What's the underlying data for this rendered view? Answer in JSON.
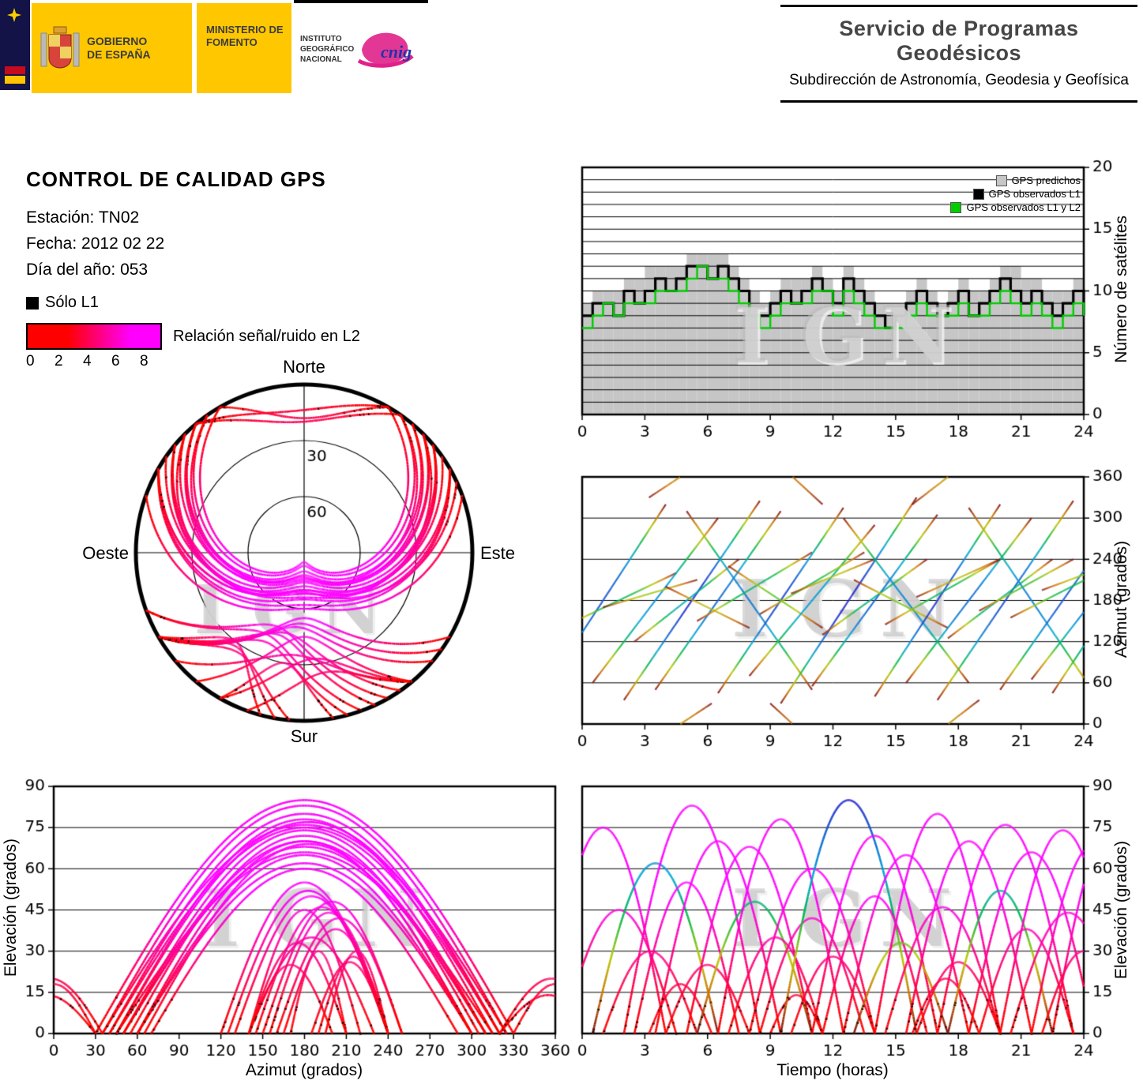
{
  "header": {
    "logos": {
      "gobierno": "GOBIERNO DE ESPAÑA",
      "ministerio": "MINISTERIO DE FOMENTO",
      "instituto": "INSTITUTO GEOGRÁFICO NACIONAL",
      "cnig": "cnig"
    },
    "service_title": "Servicio de Programas Geodésicos",
    "service_subtitle": "Subdirección de Astronomía, Geodesia y Geofísica"
  },
  "report": {
    "title": "CONTROL DE CALIDAD GPS",
    "station_label": "Estación: TN02",
    "date_label": "Fecha: 2012 02 22",
    "doy_label": "Día del año: 053"
  },
  "legend": {
    "l1_only": "Sólo L1",
    "snr_label": "Relación señal/ruido en L2",
    "snr_ticks": [
      "0",
      "2",
      "4",
      "6",
      "8"
    ],
    "snr_gradient": [
      "#ff0000",
      "#ff00ff"
    ]
  },
  "chart_data": [
    {
      "id": "skyplot",
      "type": "polar_skyplot",
      "cardinal": {
        "north": "Norte",
        "south": "Sur",
        "east": "Este",
        "west": "Oeste"
      },
      "ring_labels": [
        "30",
        "60"
      ],
      "elevation_rings_deg": [
        30,
        60
      ],
      "colormap": "snr_red_to_magenta",
      "source": "passes",
      "watermark": "IGN"
    },
    {
      "id": "satellite_count",
      "type": "area",
      "xlabel": "",
      "ylabel": "Número de satélites",
      "xlim": [
        0,
        24
      ],
      "ylim": [
        0,
        20
      ],
      "xticks": [
        0,
        3,
        6,
        9,
        12,
        15,
        18,
        21,
        24
      ],
      "yticks": [
        0,
        5,
        10,
        15,
        20
      ],
      "grid_y": 1,
      "x_step_hours": 0.5,
      "legend": [
        {
          "label": "GPS predichos",
          "color": "#c6c6c6"
        },
        {
          "label": "GPS observados L1",
          "color": "#000000"
        },
        {
          "label": "GPS observados L1 y L2",
          "color": "#00cc00"
        }
      ],
      "series": [
        {
          "name": "GPS predichos",
          "values": [
            9,
            10,
            10,
            10,
            11,
            11,
            12,
            12,
            12,
            12,
            13,
            13,
            13,
            13,
            12,
            11,
            10,
            9,
            10,
            11,
            11,
            11,
            12,
            11,
            10,
            12,
            11,
            10,
            9,
            9,
            9,
            10,
            11,
            10,
            9,
            10,
            11,
            10,
            10,
            11,
            12,
            12,
            11,
            11,
            10,
            10,
            10,
            11,
            9
          ]
        },
        {
          "name": "GPS observados L1",
          "values": [
            8,
            9,
            9,
            8,
            10,
            9,
            10,
            11,
            10,
            11,
            12,
            12,
            11,
            12,
            11,
            10,
            8,
            8,
            9,
            10,
            9,
            10,
            11,
            10,
            9,
            11,
            10,
            9,
            8,
            7,
            8,
            9,
            10,
            9,
            8,
            9,
            10,
            8,
            9,
            10,
            11,
            10,
            9,
            10,
            9,
            8,
            9,
            10,
            8
          ]
        },
        {
          "name": "GPS observados L1 y L2",
          "values": [
            7,
            8,
            9,
            8,
            9,
            9,
            9,
            10,
            10,
            10,
            11,
            12,
            11,
            11,
            10,
            9,
            8,
            7,
            8,
            9,
            9,
            9,
            10,
            10,
            8,
            10,
            9,
            8,
            7,
            7,
            7,
            8,
            9,
            8,
            8,
            8,
            9,
            8,
            8,
            9,
            10,
            9,
            8,
            9,
            8,
            7,
            8,
            9,
            8
          ]
        }
      ],
      "watermark": "IGN"
    },
    {
      "id": "azimuth_vs_time",
      "type": "line",
      "xlabel": "",
      "ylabel": "Azimut (grados)",
      "xlim": [
        0,
        24
      ],
      "ylim": [
        0,
        360
      ],
      "xticks": [
        0,
        3,
        6,
        9,
        12,
        15,
        18,
        21,
        24
      ],
      "yticks": [
        0,
        60,
        120,
        180,
        240,
        300,
        360
      ],
      "grid_y": 60,
      "colormap": "jet_by_elevation",
      "source": "passes",
      "watermark": "IGN"
    },
    {
      "id": "elevation_vs_azimuth",
      "type": "line",
      "xlabel": "Azimut (grados)",
      "ylabel": "Elevación (grados)",
      "xlim": [
        0,
        360
      ],
      "ylim": [
        0,
        90
      ],
      "xticks": [
        0,
        30,
        60,
        90,
        120,
        150,
        180,
        210,
        240,
        270,
        300,
        330,
        360
      ],
      "yticks": [
        0,
        15,
        30,
        45,
        60,
        75,
        90
      ],
      "grid_y": 15,
      "colormap": "snr_red_to_magenta",
      "source": "passes",
      "watermark": "IGN"
    },
    {
      "id": "elevation_vs_time",
      "type": "line",
      "xlabel": "Tiempo (horas)",
      "ylabel": "Elevación (grados)",
      "xlim": [
        0,
        24
      ],
      "ylim": [
        0,
        90
      ],
      "xticks": [
        0,
        3,
        6,
        9,
        12,
        15,
        18,
        21,
        24
      ],
      "yticks": [
        0,
        15,
        30,
        45,
        60,
        75,
        90
      ],
      "grid_y": 15,
      "colormap": "snr_red_to_magenta",
      "source": "passes",
      "watermark": "IGN"
    }
  ],
  "passes": {
    "fields": [
      "rise_hour",
      "duration_hours",
      "max_elevation_deg",
      "rise_azimuth_deg",
      "azimuth_change_deg",
      "alt_jet_colored"
    ],
    "list": [
      [
        -2,
        6,
        75,
        40,
        280,
        0
      ],
      [
        -1,
        5.5,
        45,
        140,
        80,
        0
      ],
      [
        0.5,
        6,
        62,
        60,
        240,
        1
      ],
      [
        1,
        4.5,
        30,
        170,
        40,
        0
      ],
      [
        2,
        6.5,
        83,
        35,
        290,
        0
      ],
      [
        2.5,
        5,
        55,
        120,
        120,
        0
      ],
      [
        3.2,
        3,
        18,
        330,
        60,
        0
      ],
      [
        3.5,
        6,
        70,
        50,
        260,
        0
      ],
      [
        4,
        4,
        25,
        200,
        -60,
        0
      ],
      [
        5,
        6,
        68,
        310,
        -260,
        0
      ],
      [
        5.5,
        5.5,
        48,
        150,
        100,
        1
      ],
      [
        6.5,
        6,
        78,
        45,
        270,
        0
      ],
      [
        7,
        4.5,
        35,
        230,
        -90,
        0
      ],
      [
        8,
        6,
        60,
        70,
        220,
        0
      ],
      [
        8.5,
        5,
        42,
        160,
        90,
        0
      ],
      [
        9,
        2.5,
        14,
        30,
        -70,
        0
      ],
      [
        9.5,
        6.5,
        85,
        30,
        300,
        1
      ],
      [
        10,
        4,
        28,
        190,
        50,
        0
      ],
      [
        11,
        6,
        72,
        55,
        250,
        0
      ],
      [
        11.5,
        5,
        50,
        130,
        110,
        0
      ],
      [
        12.5,
        6,
        65,
        300,
        -240,
        0
      ],
      [
        13,
        4.5,
        33,
        210,
        -70,
        1
      ],
      [
        14,
        6,
        80,
        40,
        280,
        0
      ],
      [
        14.5,
        5.5,
        46,
        145,
        95,
        0
      ],
      [
        15.5,
        6,
        70,
        60,
        240,
        0
      ],
      [
        15.8,
        3.2,
        20,
        320,
        75,
        0
      ],
      [
        16,
        4,
        26,
        185,
        55,
        0
      ],
      [
        17,
        6.5,
        76,
        35,
        290,
        0
      ],
      [
        17.5,
        5,
        52,
        125,
        115,
        1
      ],
      [
        18.5,
        6,
        66,
        315,
        -270,
        0
      ],
      [
        19,
        4.5,
        38,
        165,
        75,
        0
      ],
      [
        20,
        6,
        74,
        50,
        260,
        0
      ],
      [
        20.5,
        5.5,
        44,
        155,
        85,
        0
      ],
      [
        21.5,
        6,
        69,
        65,
        235,
        0
      ],
      [
        22,
        4,
        30,
        195,
        45,
        0
      ],
      [
        22.5,
        6,
        77,
        45,
        275,
        0
      ]
    ]
  }
}
